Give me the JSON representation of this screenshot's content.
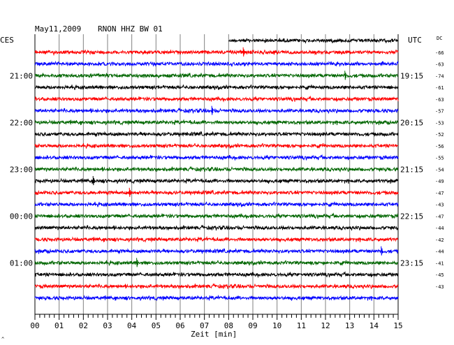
{
  "header": {
    "date": "May11,2009",
    "station": "RNON HHZ BW 01"
  },
  "labels": {
    "left_timezone": "CES",
    "right_timezone": "UTC",
    "dc_header": "DC",
    "xlabel": "Zeit [min]",
    "corner_mark": "^"
  },
  "colors": {
    "trace_cycle": [
      "#000000",
      "#ff0000",
      "#0000ff",
      "#006600"
    ],
    "grid": "#808080",
    "frame": "#000000",
    "background": "#ffffff"
  },
  "chart_data": {
    "type": "line",
    "title": "May11,2009   RNON HHZ BW 01",
    "xlabel": "Zeit [min]",
    "x_ticks": [
      "00",
      "01",
      "02",
      "03",
      "04",
      "05",
      "06",
      "07",
      "08",
      "09",
      "10",
      "11",
      "12",
      "13",
      "14",
      "15"
    ],
    "xlim": [
      0,
      15
    ],
    "first_trace_start_min": 8,
    "row_count": 23,
    "left_time_labels": [
      {
        "row": 3,
        "label": "21:00"
      },
      {
        "row": 7,
        "label": "22:00"
      },
      {
        "row": 11,
        "label": "23:00"
      },
      {
        "row": 15,
        "label": "00:00"
      },
      {
        "row": 19,
        "label": "01:00"
      }
    ],
    "right_time_labels": [
      {
        "row": 3,
        "label": "19:15"
      },
      {
        "row": 7,
        "label": "20:15"
      },
      {
        "row": 11,
        "label": "21:15"
      },
      {
        "row": 15,
        "label": "22:15"
      },
      {
        "row": 19,
        "label": "23:15"
      }
    ],
    "dc_offsets": [
      "",
      "-66",
      "-63",
      "-74",
      "-61",
      "-63",
      "-57",
      "-53",
      "-52",
      "-56",
      "-55",
      "-54",
      "-49",
      "-47",
      "-43",
      "-47",
      "-44",
      "-42",
      "-44",
      "-41",
      "-45",
      "-43",
      ""
    ],
    "events": [
      {
        "row": 1,
        "minute": 8.6
      },
      {
        "row": 3,
        "minute": 12.8
      },
      {
        "row": 6,
        "minute": 7.3
      },
      {
        "row": 12,
        "minute": 2.4
      },
      {
        "row": 13,
        "minute": 3.9
      },
      {
        "row": 18,
        "minute": 14.3
      },
      {
        "row": 19,
        "minute": 4.2
      }
    ]
  }
}
